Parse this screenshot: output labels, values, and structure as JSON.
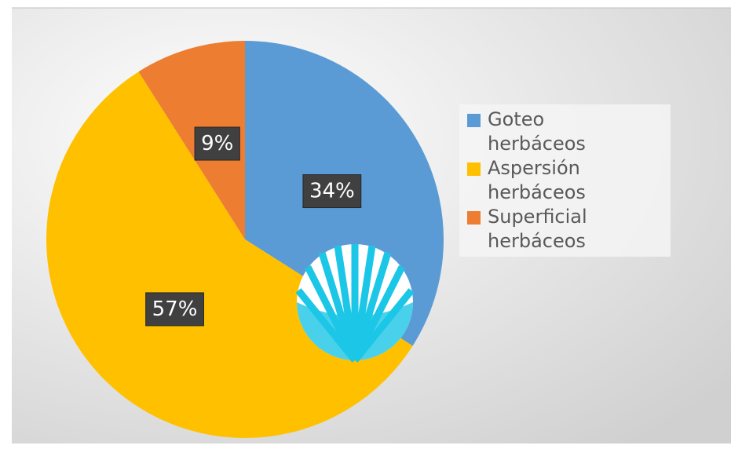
{
  "chart_data": {
    "type": "pie",
    "categories": [
      "Goteo herbáceos",
      "Aspersión herbáceos",
      "Superficial herbáceos"
    ],
    "values": [
      34,
      57,
      9
    ],
    "value_labels": [
      "34%",
      "57%",
      "9%"
    ],
    "colors": [
      "#5b9bd5",
      "#ffc000",
      "#ed7d31"
    ],
    "legend": "right"
  }
}
